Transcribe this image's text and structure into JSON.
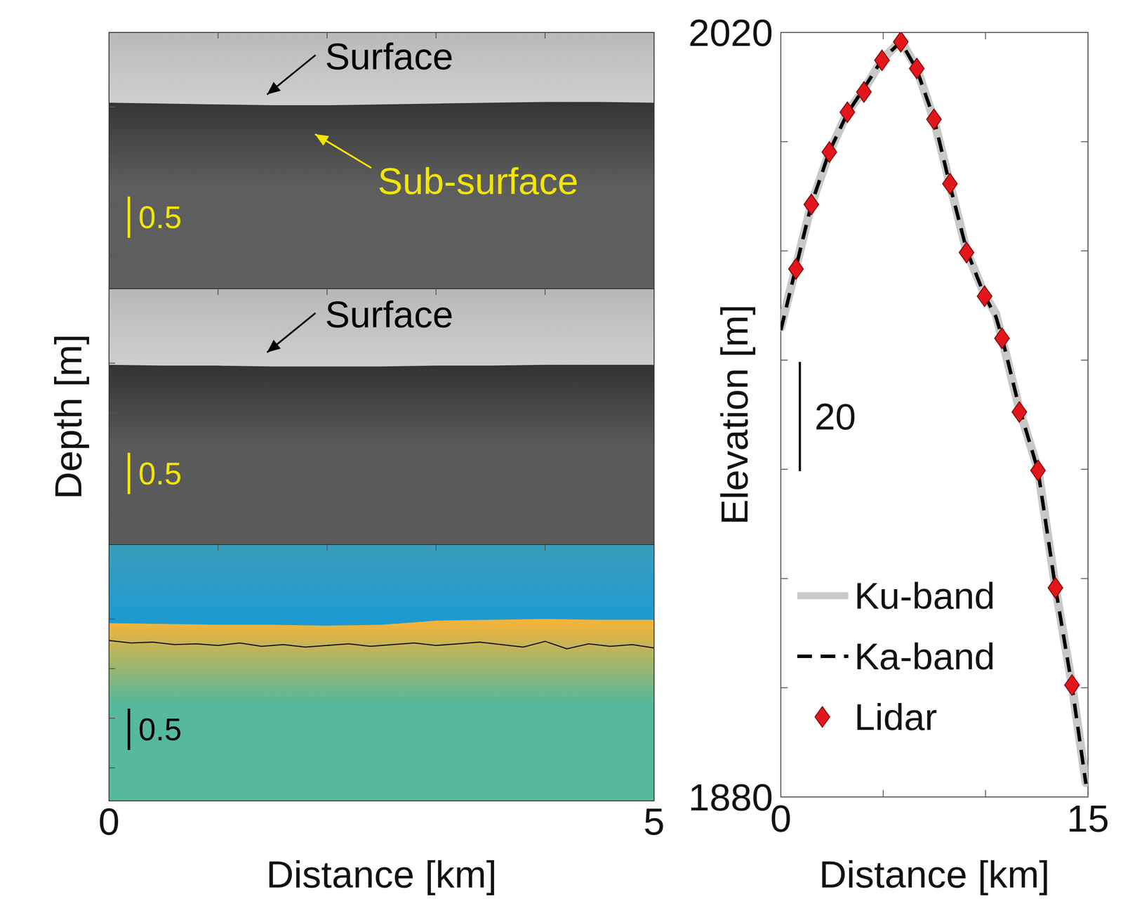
{
  "chart_data": [
    {
      "type": "echogram",
      "ylabel": "Depth [m]",
      "xlim": [
        0,
        5
      ],
      "ylim": [
        0,
        3.1
      ],
      "x_minor_ticks": [
        1,
        2,
        3,
        4
      ],
      "y_minor_ticks": [
        0.9,
        1.5,
        2.1,
        2.7
      ],
      "colors": [
        "#d0d0d0",
        "#363636",
        "#5e5e5e"
      ],
      "surface": {
        "x": [
          0,
          0.5,
          1,
          1.5,
          2,
          2.5,
          3,
          3.5,
          4,
          4.5,
          5
        ],
        "values": [
          0.85,
          0.86,
          0.87,
          0.88,
          0.88,
          0.87,
          0.86,
          0.85,
          0.84,
          0.84,
          0.85
        ]
      },
      "annotations": [
        {
          "text": "Surface",
          "color": "#000000",
          "x": 1.45,
          "y": 0.75
        },
        {
          "text": "Sub-surface",
          "color": "#f2e600",
          "x": 1.89,
          "y": 1.23
        }
      ],
      "scale_bar": {
        "value": 0.5,
        "label": "0.5",
        "color": "#f2e600"
      }
    },
    {
      "type": "echogram",
      "xlim": [
        0,
        5
      ],
      "ylim": [
        0,
        3.1
      ],
      "x_minor_ticks": [
        1,
        2,
        3,
        4
      ],
      "y_minor_ticks": [
        0.9,
        1.5,
        2.1,
        2.7
      ],
      "colors": [
        "#cfcfcf",
        "#333333",
        "#5a5a5a"
      ],
      "surface": {
        "x": [
          0,
          0.5,
          1,
          1.5,
          2,
          2.5,
          3,
          3.5,
          4,
          4.5,
          5
        ],
        "values": [
          0.92,
          0.93,
          0.93,
          0.94,
          0.94,
          0.94,
          0.93,
          0.93,
          0.92,
          0.92,
          0.92
        ]
      },
      "annotations": [
        {
          "text": "Surface",
          "color": "#000000",
          "x": 1.45,
          "y": 0.77
        }
      ],
      "scale_bar": {
        "value": 0.5,
        "label": "0.5",
        "color": "#f2e600"
      }
    },
    {
      "type": "echogram",
      "xlabel": "Distance [km]",
      "xlim": [
        0,
        5
      ],
      "ylim": [
        0,
        3.1
      ],
      "xticks": [
        0,
        5
      ],
      "x_minor_ticks": [
        1,
        2,
        3,
        4
      ],
      "y_minor_ticks": [
        0.9,
        1.5,
        2.1,
        2.7
      ],
      "colors": [
        "#1b9ad2",
        "#f3b33a",
        "#56b89c"
      ],
      "surface": {
        "x": [
          0,
          0.5,
          1,
          1.5,
          2,
          2.5,
          3,
          3.5,
          4,
          4.5,
          5
        ],
        "values": [
          0.95,
          0.96,
          0.97,
          0.97,
          0.98,
          0.97,
          0.92,
          0.91,
          0.9,
          0.91,
          0.91
        ]
      },
      "subsurface": {
        "x": [
          0,
          0.2,
          0.4,
          0.6,
          0.8,
          1,
          1.2,
          1.4,
          1.6,
          1.8,
          2,
          2.2,
          2.4,
          2.6,
          2.8,
          3,
          3.2,
          3.4,
          3.6,
          3.8,
          4,
          4.2,
          4.4,
          4.6,
          4.8,
          5
        ],
        "values": [
          1.16,
          1.19,
          1.18,
          1.21,
          1.2,
          1.22,
          1.19,
          1.23,
          1.21,
          1.24,
          1.22,
          1.2,
          1.23,
          1.21,
          1.19,
          1.22,
          1.2,
          1.18,
          1.21,
          1.24,
          1.17,
          1.26,
          1.2,
          1.23,
          1.21,
          1.25
        ]
      },
      "scale_bar": {
        "value": 0.5,
        "label": "0.5",
        "color": "#000000"
      }
    },
    {
      "type": "line",
      "xlabel": "Distance [km]",
      "ylabel": "Elevation [m]",
      "xlim": [
        0,
        15
      ],
      "ylim": [
        1880,
        2020
      ],
      "xticks": [
        0,
        15
      ],
      "yticks": [
        1880,
        2020
      ],
      "x_minor_ticks": [
        5,
        10
      ],
      "y_minor_ticks": [
        1900,
        1920,
        1940,
        1960,
        1980,
        2000
      ],
      "grid": false,
      "legend": "lower left",
      "scale_bar": {
        "value": 20,
        "label": "20"
      },
      "series": [
        {
          "name": "Ku-band",
          "color": "#c8c8c8",
          "line_style": "solid",
          "x": [
            0,
            0.74,
            1.49,
            2.37,
            3.25,
            4.06,
            4.94,
            5.86,
            6.64,
            7.48,
            8.26,
            9.07,
            9.95,
            10.5,
            10.8,
            11.65,
            12.56,
            13.41,
            14.22,
            14.9
          ],
          "values": [
            1966,
            1977,
            1988.5,
            1998,
            2005.4,
            2009.5,
            2015,
            2018.5,
            2013.5,
            2004,
            1992.3,
            1980,
            1972,
            1968.5,
            1964,
            1951,
            1940,
            1918.5,
            1900.5,
            1882.6
          ]
        },
        {
          "name": "Ka-band",
          "color": "#000000",
          "line_style": "dashed",
          "x": [
            0,
            0.74,
            1.49,
            2.37,
            3.25,
            4.06,
            4.94,
            5.86,
            6.64,
            7.48,
            8.26,
            9.07,
            9.95,
            10.5,
            10.8,
            11.65,
            12.56,
            13.41,
            14.22,
            14.9
          ],
          "values": [
            1965.5,
            1977,
            1988.5,
            1998.2,
            2005.2,
            2009.8,
            2015,
            2018.3,
            2013.2,
            2004.2,
            1992,
            1980.2,
            1971.8,
            1968,
            1964.2,
            1951.2,
            1939.8,
            1918.4,
            1900.3,
            1882.4
          ]
        },
        {
          "name": "Lidar",
          "type": "scatter",
          "marker": "diamond",
          "color": "#e3161c",
          "x": [
            0.74,
            1.49,
            2.37,
            3.25,
            4.06,
            4.94,
            5.86,
            6.64,
            7.48,
            8.26,
            9.07,
            9.95,
            10.8,
            11.65,
            12.56,
            13.41,
            14.22
          ],
          "values": [
            1976.7,
            1988.5,
            1998.1,
            2005.4,
            2009.1,
            2014.9,
            2018.3,
            2013.4,
            2004.1,
            1992.3,
            1979.7,
            1971.7,
            1964,
            1950.5,
            1939.8,
            1918.3,
            1900.5
          ]
        }
      ]
    }
  ]
}
